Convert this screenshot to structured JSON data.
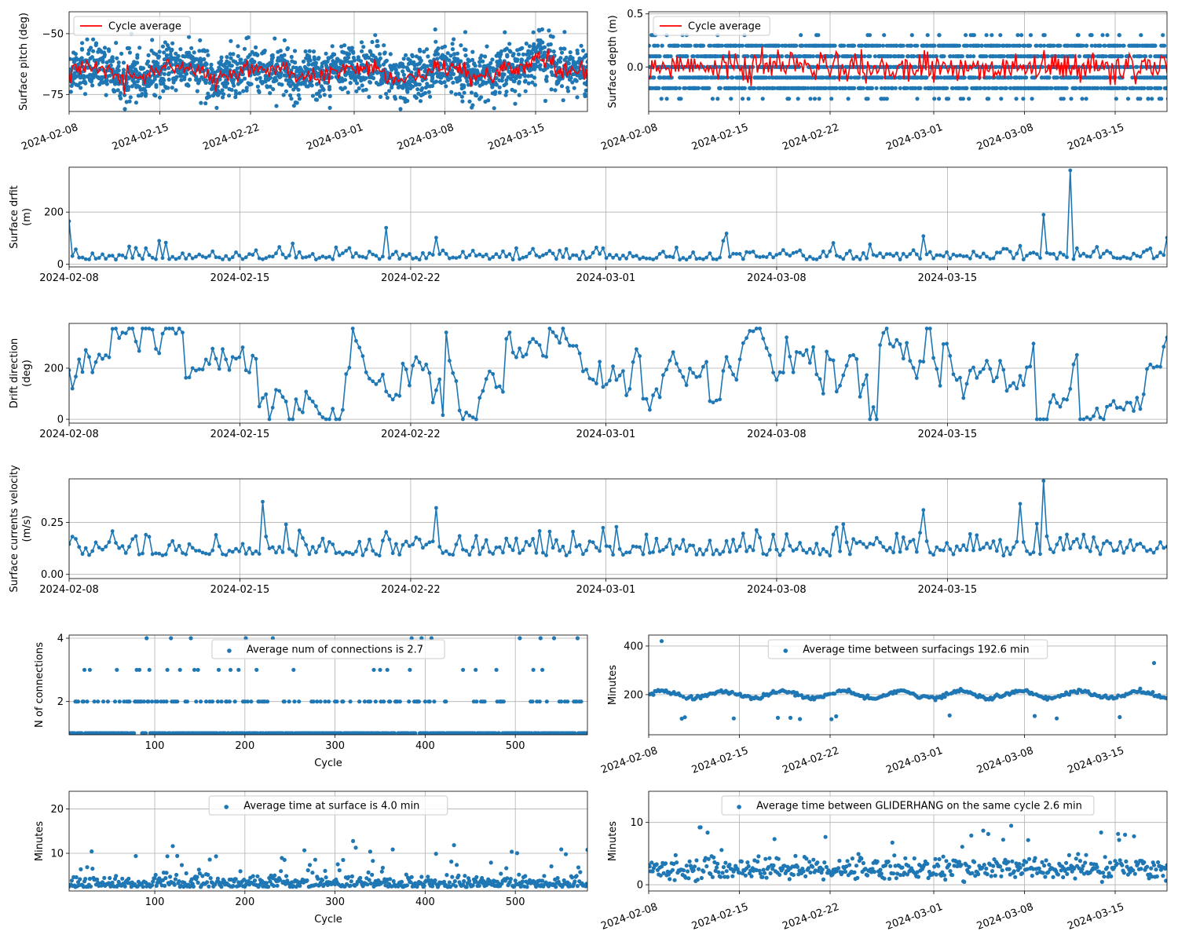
{
  "colors": {
    "series": "#1f77b4",
    "average": "#ff0000",
    "grid": "#b0b0b0"
  },
  "chart_data": [
    {
      "id": "p1",
      "type": "scatter",
      "ylabel": "Surface pitch (deg)",
      "xaxis": "date",
      "xlim": [
        "2024-02-08",
        "2024-03-19"
      ],
      "ylim": [
        -82,
        -41
      ],
      "yticks": [
        -75,
        -50
      ],
      "xticks": [
        "2024-02-08",
        "2024-02-15",
        "2024-02-22",
        "2024-03-01",
        "2024-03-08",
        "2024-03-15"
      ],
      "xtick_rotation": 20,
      "grid": true,
      "legend": "upper-left",
      "series": [
        {
          "name": "",
          "style": "points"
        },
        {
          "name": "Cycle average",
          "style": "line"
        }
      ]
    },
    {
      "id": "p2",
      "type": "scatter",
      "ylabel": "Surface depth (m)",
      "xaxis": "date",
      "xlim": [
        "2024-02-08",
        "2024-03-19"
      ],
      "ylim": [
        -0.42,
        0.52
      ],
      "yticks": [
        0.0,
        0.5
      ],
      "xticks": [
        "2024-02-08",
        "2024-02-15",
        "2024-02-22",
        "2024-03-01",
        "2024-03-08",
        "2024-03-15"
      ],
      "xtick_rotation": 20,
      "grid": true,
      "legend": "upper-left",
      "series": [
        {
          "name": "",
          "style": "points"
        },
        {
          "name": "Cycle average",
          "style": "line"
        }
      ]
    },
    {
      "id": "p3",
      "type": "line",
      "ylabel": [
        "Surface drfit",
        "(m)"
      ],
      "xaxis": "date",
      "xlim": [
        "2024-02-08",
        "2024-03-24"
      ],
      "ylim": [
        -10,
        372
      ],
      "yticks": [
        0,
        200
      ],
      "xticks": [
        "2024-02-08",
        "2024-02-15",
        "2024-02-22",
        "2024-03-01",
        "2024-03-08",
        "2024-03-15"
      ],
      "grid": true,
      "peaks": [
        [
          "2024-02-08",
          165
        ],
        [
          "2024-02-21",
          140
        ],
        [
          "2024-02-23",
          102
        ],
        [
          "2024-03-06",
          118
        ],
        [
          "2024-03-14",
          108
        ],
        [
          "2024-03-19",
          190
        ],
        [
          "2024-03-20",
          360
        ],
        [
          "2024-03-24",
          102
        ]
      ]
    },
    {
      "id": "p4",
      "type": "line",
      "ylabel": [
        "Drift direction",
        "(deg)"
      ],
      "xaxis": "date",
      "xlim": [
        "2024-02-08",
        "2024-03-24"
      ],
      "ylim": [
        -15,
        375
      ],
      "yticks": [
        0,
        200
      ],
      "xticks": [
        "2024-02-08",
        "2024-02-15",
        "2024-02-22",
        "2024-03-01",
        "2024-03-08",
        "2024-03-15"
      ],
      "grid": true
    },
    {
      "id": "p5",
      "type": "line",
      "ylabel": [
        "Surface currents velocity",
        "(m/s)"
      ],
      "xaxis": "date",
      "xlim": [
        "2024-02-08",
        "2024-03-24"
      ],
      "ylim": [
        -0.02,
        0.46
      ],
      "yticks": [
        0.0,
        0.25
      ],
      "xticks": [
        "2024-02-08",
        "2024-02-15",
        "2024-02-22",
        "2024-03-01",
        "2024-03-08",
        "2024-03-15"
      ],
      "grid": true,
      "peaks": [
        [
          "2024-02-16",
          0.35
        ],
        [
          "2024-02-23",
          0.32
        ],
        [
          "2024-03-14",
          0.31
        ],
        [
          "2024-03-18",
          0.34
        ],
        [
          "2024-03-19",
          0.45
        ]
      ]
    },
    {
      "id": "p6",
      "type": "scatter",
      "xlabel": "Cycle",
      "ylabel": "N of connections",
      "xaxis": "number",
      "xlim": [
        5,
        580
      ],
      "ylim": [
        0.95,
        4.1
      ],
      "yticks": [
        2,
        4
      ],
      "xticks": [
        100,
        200,
        300,
        400,
        500
      ],
      "grid": true,
      "legend": "upper-center",
      "series": [
        {
          "name": "Average num of connections is 2.7",
          "style": "points"
        }
      ]
    },
    {
      "id": "p7",
      "type": "scatter",
      "ylabel": "Minutes",
      "xaxis": "date",
      "xlim": [
        "2024-02-08",
        "2024-03-19"
      ],
      "ylim": [
        35,
        445
      ],
      "yticks": [
        200,
        400
      ],
      "xticks": [
        "2024-02-08",
        "2024-02-15",
        "2024-02-22",
        "2024-03-01",
        "2024-03-08",
        "2024-03-15"
      ],
      "xtick_rotation": 20,
      "grid": true,
      "legend": "upper-center",
      "series": [
        {
          "name": "Average time between surfacings 192.6 min",
          "style": "points"
        }
      ]
    },
    {
      "id": "p8",
      "type": "scatter",
      "xlabel": "Cycle",
      "ylabel": "Minutes",
      "xaxis": "number",
      "xlim": [
        5,
        580
      ],
      "ylim": [
        1.5,
        24
      ],
      "yticks": [
        10,
        20
      ],
      "xticks": [
        100,
        200,
        300,
        400,
        500
      ],
      "grid": true,
      "legend": "upper-center",
      "series": [
        {
          "name": "Average time at surface is 4.0 min",
          "style": "points"
        }
      ]
    },
    {
      "id": "p9",
      "type": "scatter",
      "ylabel": "Minutes",
      "xaxis": "date",
      "xlim": [
        "2024-02-08",
        "2024-03-19"
      ],
      "ylim": [
        -1,
        15
      ],
      "yticks": [
        0,
        10
      ],
      "xticks": [
        "2024-02-08",
        "2024-02-15",
        "2024-02-22",
        "2024-03-01",
        "2024-03-08",
        "2024-03-15"
      ],
      "xtick_rotation": 20,
      "grid": true,
      "legend": "upper-center",
      "series": [
        {
          "name": "Average time between GLIDERHANG on the same cycle 2.6 min",
          "style": "points"
        }
      ]
    }
  ]
}
